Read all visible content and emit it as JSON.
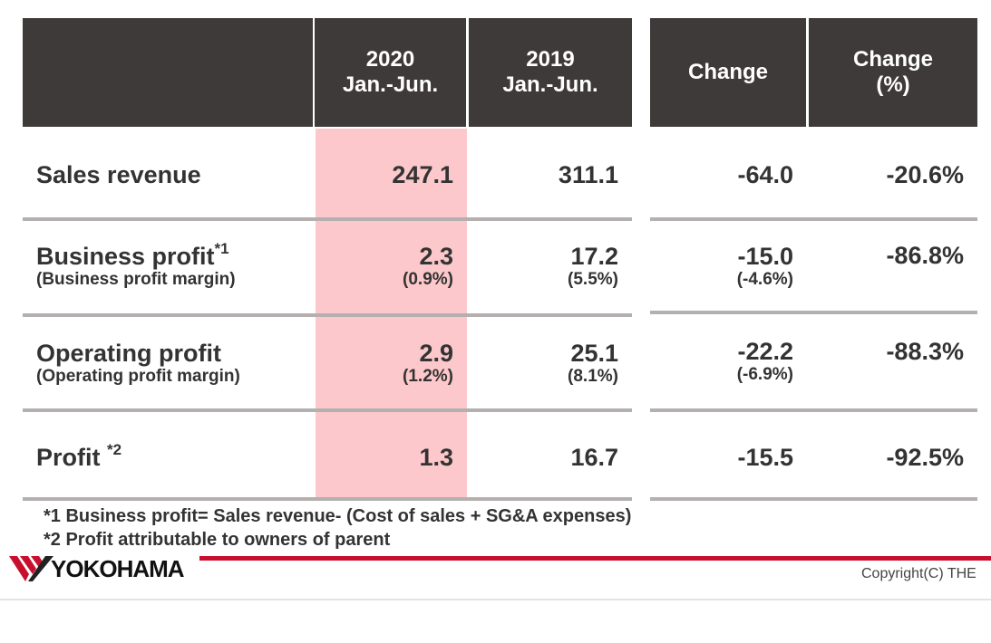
{
  "header": {
    "col1": [
      "2020",
      "Jan.-Jun."
    ],
    "col2": [
      "2019",
      "Jan.-Jun."
    ],
    "col3": "Change",
    "col4": [
      "Change",
      "(%)"
    ]
  },
  "rows": [
    {
      "label": "Sales revenue",
      "sup": "",
      "sub": "",
      "v2020": "247.1",
      "v2020_sub": "",
      "v2019": "311.1",
      "v2019_sub": "",
      "change": "-64.0",
      "change_sub": "",
      "pct": "-20.6%"
    },
    {
      "label": "Business profit",
      "sup": "*1",
      "sub": "(Business profit margin)",
      "v2020": "2.3",
      "v2020_sub": "(0.9%)",
      "v2019": "17.2",
      "v2019_sub": "(5.5%)",
      "change": "-15.0",
      "change_sub": "(-4.6%)",
      "pct": "-86.8%"
    },
    {
      "label": "Operating profit",
      "sup": "",
      "sub": "(Operating profit margin)",
      "v2020": "2.9",
      "v2020_sub": "(1.2%)",
      "v2019": "25.1",
      "v2019_sub": "(8.1%)",
      "change": "-22.2",
      "change_sub": "(-6.9%)",
      "pct": "-88.3%"
    },
    {
      "label": "Profit ",
      "sup": "*2",
      "sub": "",
      "v2020": "1.3",
      "v2020_sub": "",
      "v2019": "16.7",
      "v2019_sub": "",
      "change": "-15.5",
      "change_sub": "",
      "pct": "-92.5%"
    }
  ],
  "footnotes": [
    "*1 Business profit= Sales revenue- (Cost of sales + SG&A expenses)",
    "*2 Profit attributable to owners of parent"
  ],
  "logo_text": "YOKOHAMA",
  "copyright": "Copyright(C) THE",
  "colors": {
    "header_bg": "#3e3a39",
    "highlight": "#fcc8cb",
    "separator": "#b3b0af",
    "brand_red": "#c8102e"
  }
}
